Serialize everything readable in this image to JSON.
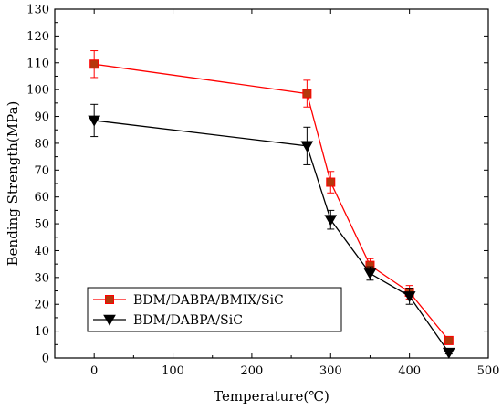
{
  "chart_data": {
    "type": "line",
    "xlabel": "Temperature(℃)",
    "ylabel": "Bending Strength(MPa)",
    "xlim": [
      -50,
      500
    ],
    "ylim": [
      0,
      130
    ],
    "xticks": [
      0,
      100,
      200,
      300,
      400,
      500
    ],
    "yticks": [
      0,
      10,
      20,
      30,
      40,
      50,
      60,
      70,
      80,
      90,
      100,
      110,
      120,
      130
    ],
    "x": [
      0,
      270,
      300,
      350,
      400,
      450
    ],
    "grid": false,
    "legend_position": "bottom-left",
    "series": [
      {
        "name": "BDM/DABPA/BMIX/SiC",
        "values": [
          109.5,
          98.5,
          65.5,
          34.5,
          24.5,
          6.5
        ],
        "errors": [
          5,
          5,
          4,
          2.5,
          2.5,
          1
        ],
        "line_color": "#ff0000",
        "marker_fill": "#b5380c",
        "marker_stroke": "#ff0000",
        "marker": "square"
      },
      {
        "name": "BDM/DABPA/SiC",
        "values": [
          88.5,
          79,
          51.5,
          31.5,
          23,
          2
        ],
        "errors": [
          6,
          7,
          3.5,
          2.5,
          3,
          0.5
        ],
        "line_color": "#000000",
        "marker_fill": "#000000",
        "marker_stroke": "#000000",
        "marker": "triangle-down"
      }
    ]
  }
}
